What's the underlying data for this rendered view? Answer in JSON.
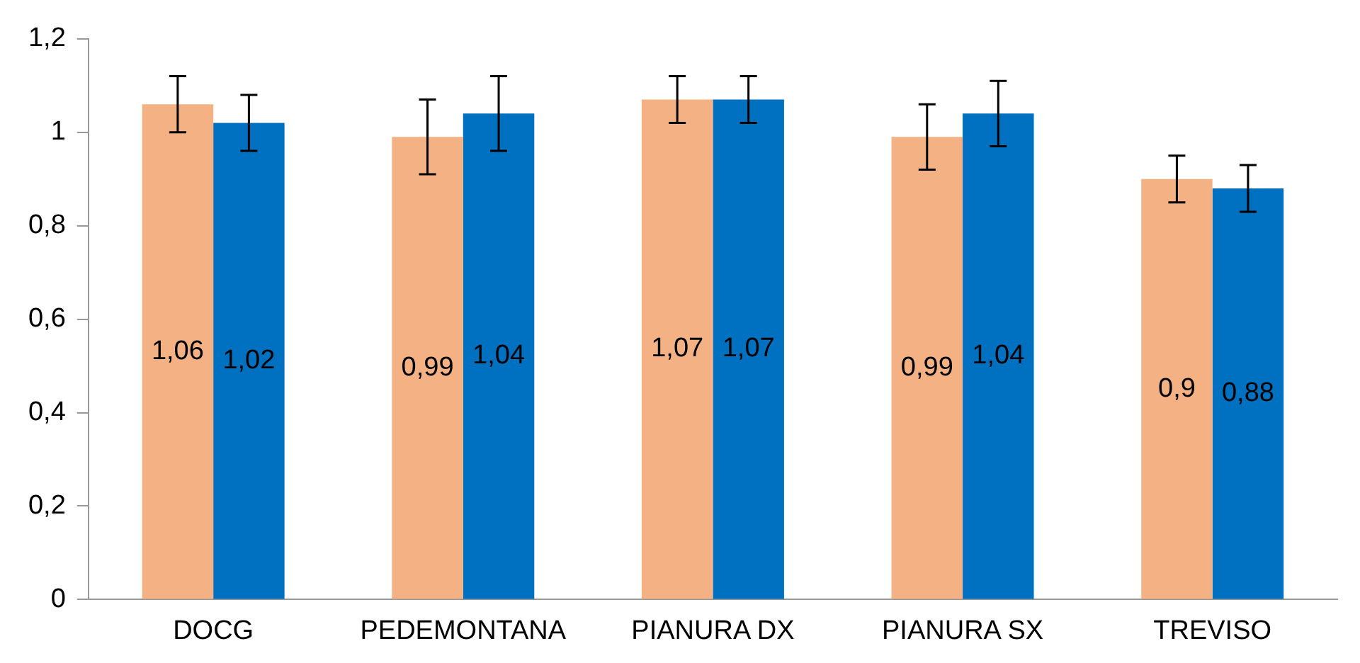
{
  "chart_data": {
    "type": "bar",
    "categories": [
      "DOCG",
      "PEDEMONTANA",
      "PIANURA DX",
      "PIANURA SX",
      "TREVISO"
    ],
    "series": [
      {
        "color": "#f4b183",
        "values": [
          1.06,
          0.99,
          1.07,
          0.99,
          0.9
        ],
        "errors": [
          0.06,
          0.08,
          0.05,
          0.07,
          0.05
        ],
        "value_labels": [
          "1,06",
          "0,99",
          "1,07",
          "0,99",
          "0,9"
        ]
      },
      {
        "color": "#0070c0",
        "values": [
          1.02,
          1.04,
          1.07,
          1.04,
          0.88
        ],
        "errors": [
          0.06,
          0.08,
          0.05,
          0.07,
          0.05
        ],
        "value_labels": [
          "1,02",
          "1,04",
          "1,07",
          "1,04",
          "0,88"
        ]
      }
    ],
    "ylim": [
      0,
      1.2
    ],
    "yticks": [
      0,
      {
        "value": 0.2,
        "label": "0,2"
      },
      {
        "value": 0.4,
        "label": "0,4"
      },
      {
        "value": 0.6,
        "label": "0,6"
      },
      {
        "value": 0.8,
        "label": "0,8"
      },
      1,
      {
        "value": 1.2,
        "label": "1,2"
      }
    ],
    "grid": false,
    "legend": false
  }
}
